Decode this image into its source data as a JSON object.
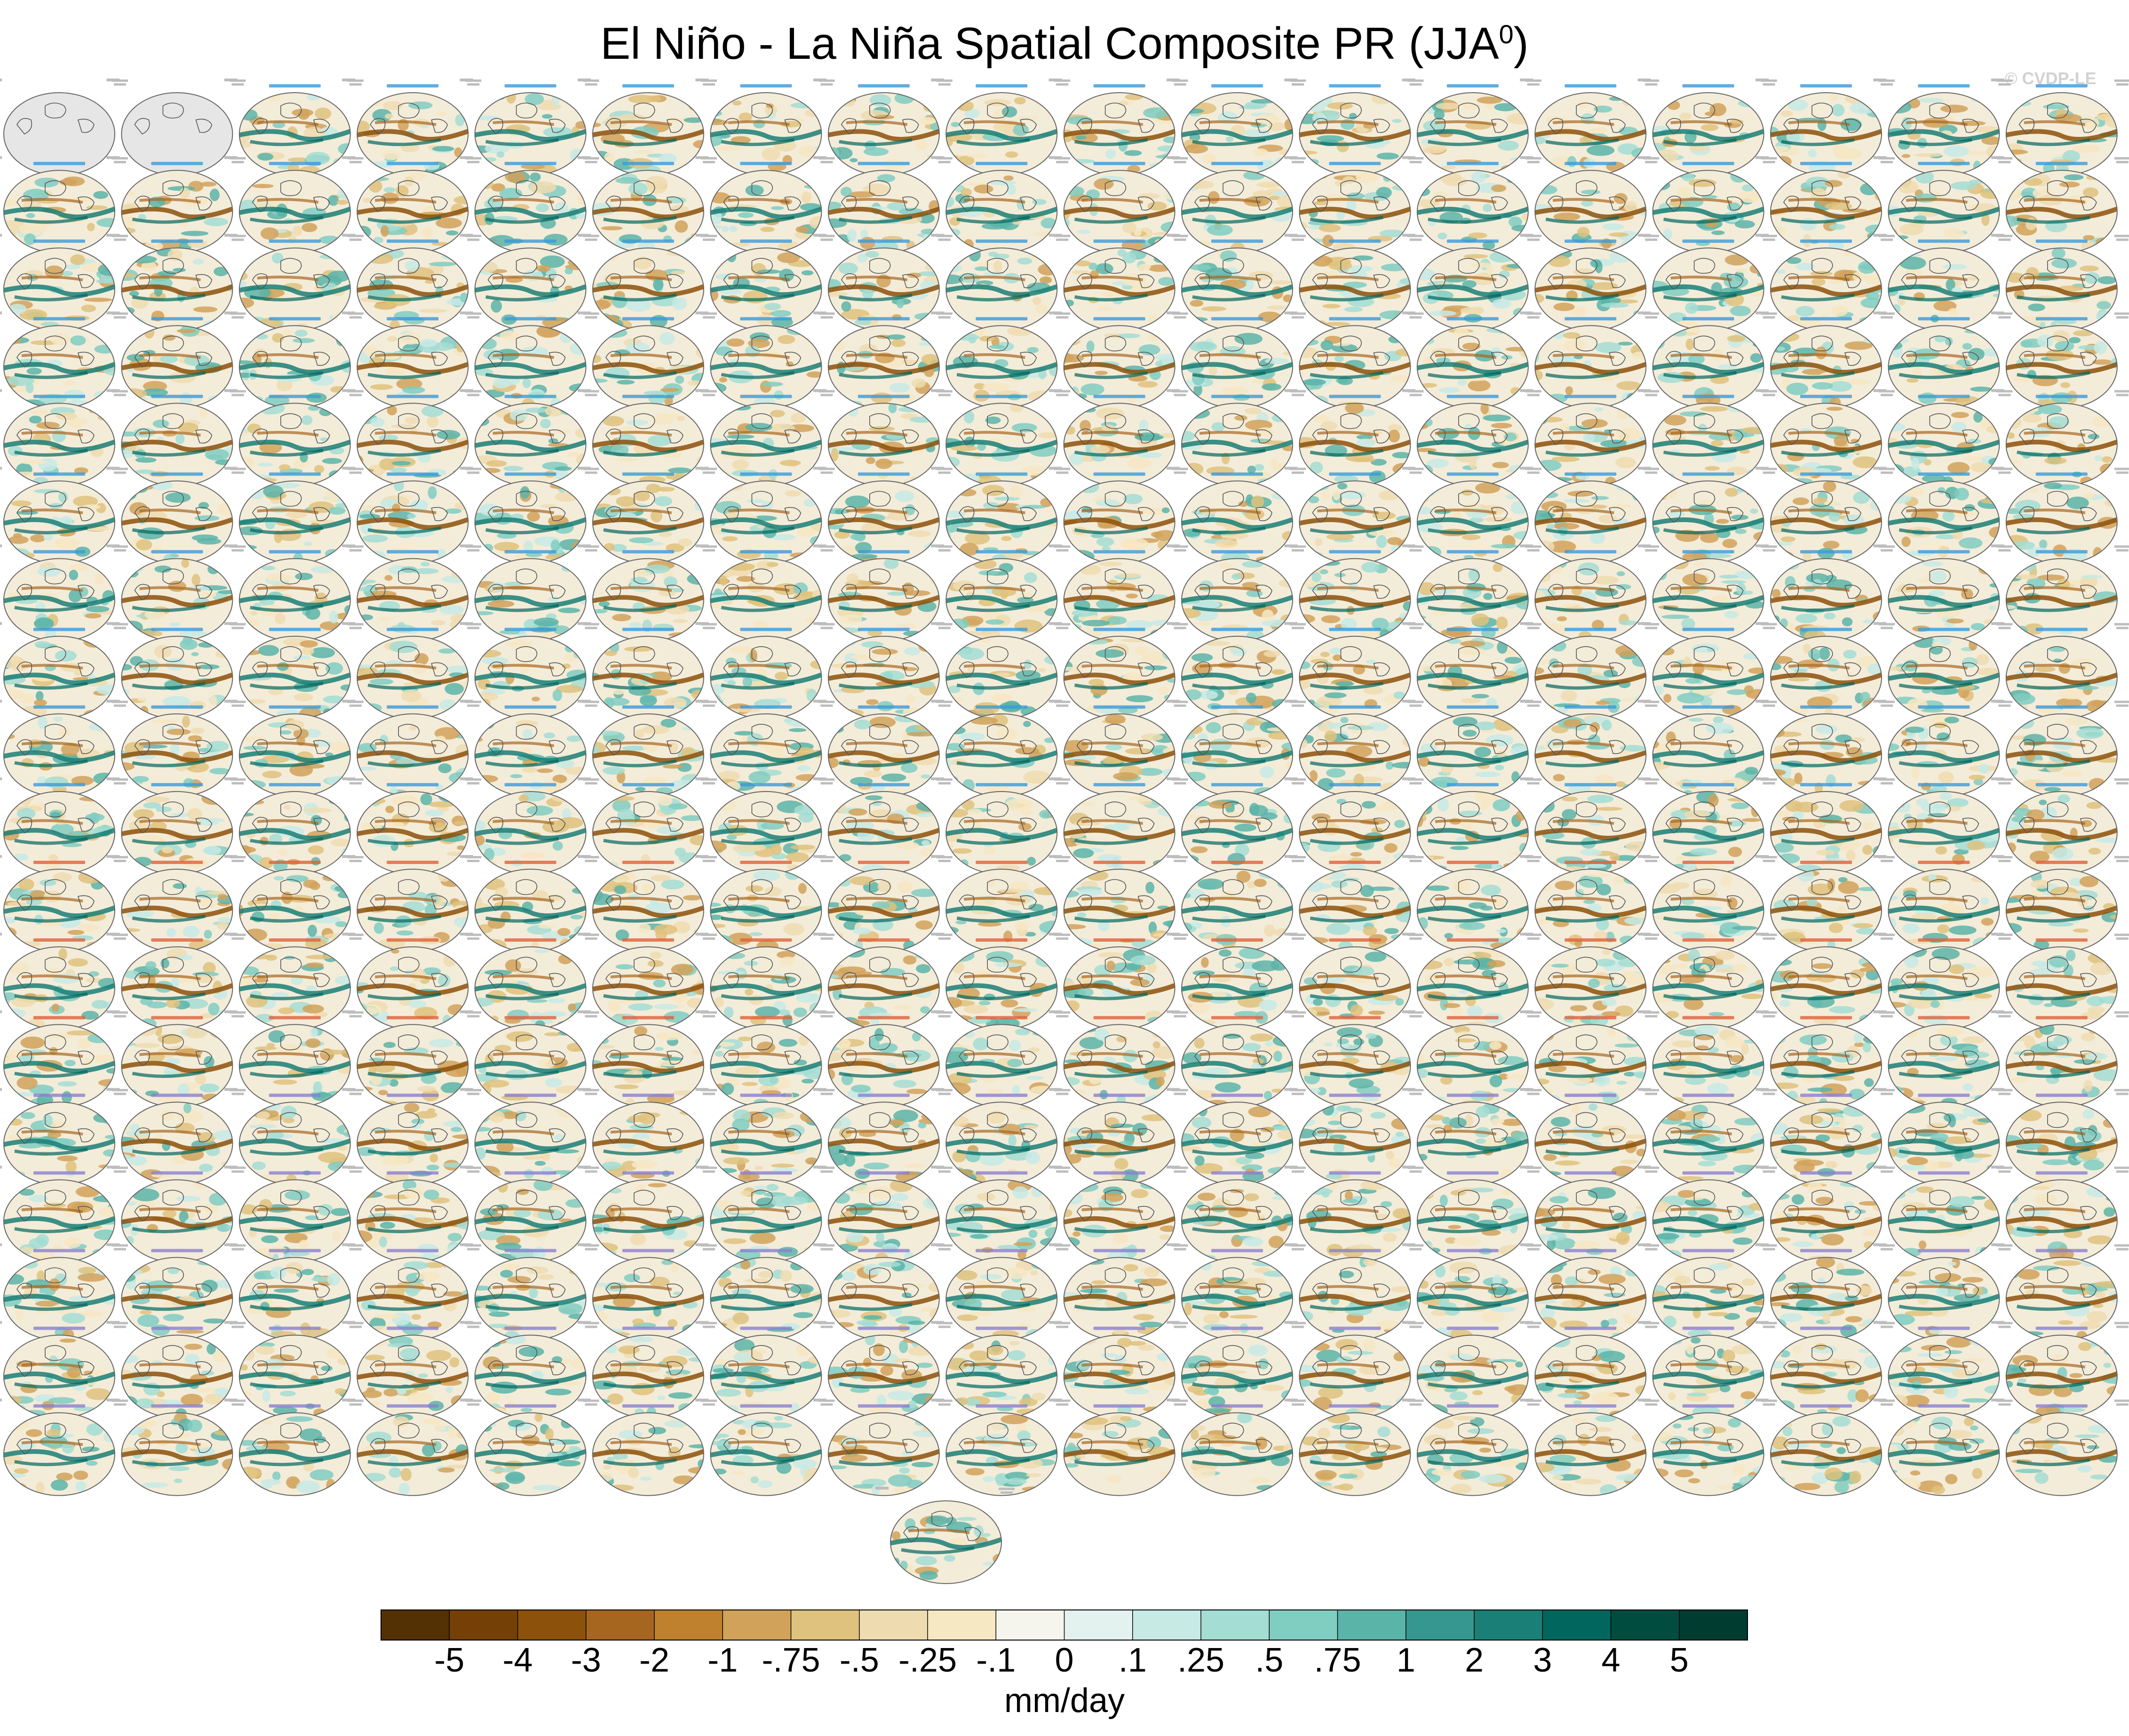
{
  "title": {
    "text": "El Niño - La Niña Spatial Composite PR (JJA",
    "sup": "0",
    "close": ")"
  },
  "watermark": "© CVDP-LE",
  "colors": {
    "ocean_obs": "#e6e6e6",
    "coast": "#555555",
    "label_blue": "#3a9ad9",
    "label_red": "#e0603a",
    "label_purple": "#8a7fd0"
  },
  "chart_data": {
    "type": "heatmap",
    "title": "El Niño - La Niña Spatial Composite PR (JJA0)",
    "layout": {
      "rows": 18,
      "cols": 18,
      "extra_panels": 1
    },
    "observation_panels": [
      {
        "title": "GPCC"
      },
      {
        "title": "GPCC_1"
      }
    ],
    "colorbar": {
      "units": "mm/day",
      "levels": [
        "-5",
        "-4",
        "-3",
        "-2",
        "-1",
        "-.75",
        "-.5",
        "-.25",
        "-.1",
        "0",
        ".1",
        ".25",
        ".5",
        ".75",
        "1",
        "2",
        "3",
        "4",
        "5"
      ],
      "colors": [
        "#543005",
        "#744006",
        "#8c510a",
        "#a6661f",
        "#bf812d",
        "#d1a25a",
        "#dfc27d",
        "#eedcb0",
        "#f6e8c3",
        "#f5f5ed",
        "#e3f2ef",
        "#c7eae5",
        "#a3ddd4",
        "#80cdc1",
        "#5ab4a8",
        "#35978f",
        "#1a7f76",
        "#01665e",
        "#004d40",
        "#003c30"
      ]
    },
    "model_label_color_by_row": [
      "blue",
      "blue",
      "blue",
      "blue",
      "blue",
      "blue",
      "blue",
      "blue",
      "blue",
      "blue",
      "red",
      "red",
      "red",
      "purple",
      "purple",
      "purple",
      "purple",
      "purple"
    ]
  }
}
